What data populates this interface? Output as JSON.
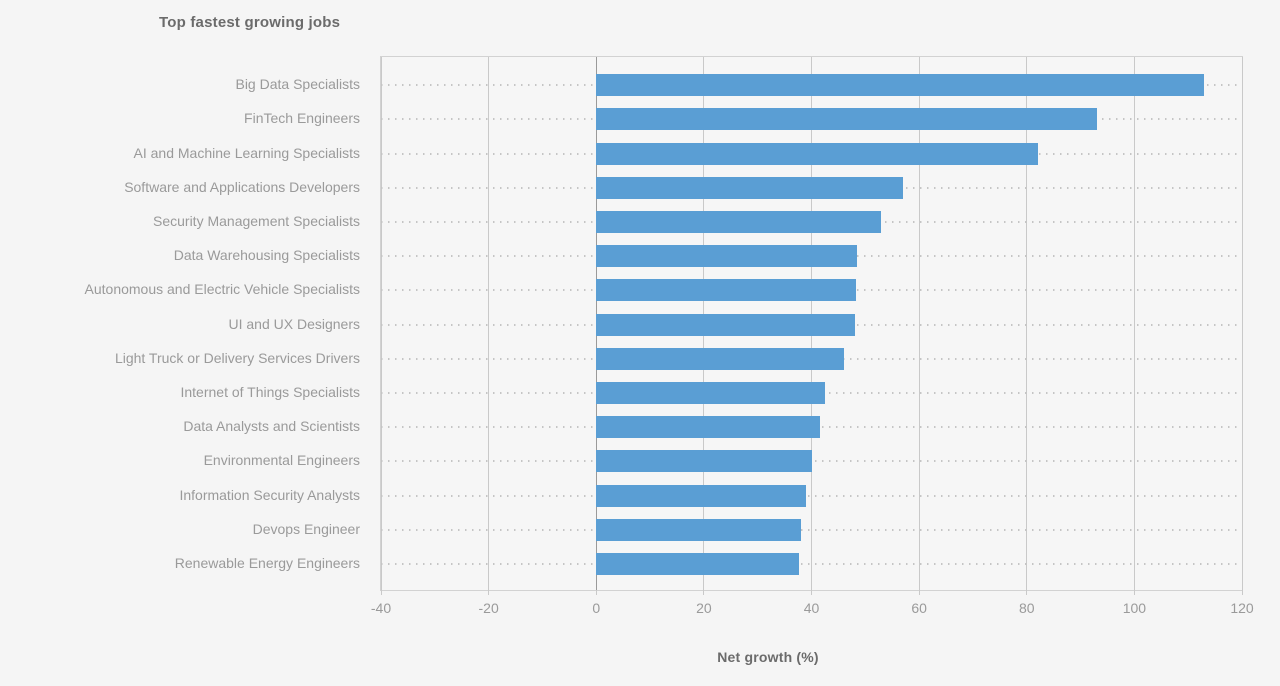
{
  "title": "Top fastest growing jobs",
  "x_axis_title": "Net growth (%)",
  "colors": {
    "page_bg": "#f5f5f5",
    "plot_bg": "#f6f6f6",
    "bar": "#5a9ed4",
    "grid": "#c9c9c9",
    "zero_line": "#9a9a9a",
    "frame": "#d2d2d2",
    "dots": "#c5c5c5",
    "title_text": "#6b6b6b",
    "label_text": "#9a9a9a"
  },
  "chart_data": {
    "type": "bar",
    "orientation": "horizontal",
    "title": "Top fastest growing jobs",
    "xlabel": "Net growth (%)",
    "ylabel": "",
    "xlim": [
      -40,
      120
    ],
    "xticks": [
      -40,
      -20,
      0,
      20,
      40,
      60,
      80,
      100,
      120
    ],
    "grid": true,
    "legend": false,
    "categories": [
      "Big Data Specialists",
      "FinTech Engineers",
      "AI and Machine Learning Specialists",
      "Software and Applications Developers",
      "Security Management Specialists",
      "Data Warehousing Specialists",
      "Autonomous and Electric Vehicle Specialists",
      "UI and UX Designers",
      "Light Truck or Delivery Services Drivers",
      "Internet of Things Specialists",
      "Data Analysts and Scientists",
      "Environmental Engineers",
      "Information Security Analysts",
      "Devops Engineer",
      "Renewable Energy Engineers"
    ],
    "values": [
      113,
      93,
      82,
      57,
      53,
      48.5,
      48.3,
      48,
      46,
      42.5,
      41.5,
      40,
      39,
      38,
      37.7
    ]
  }
}
